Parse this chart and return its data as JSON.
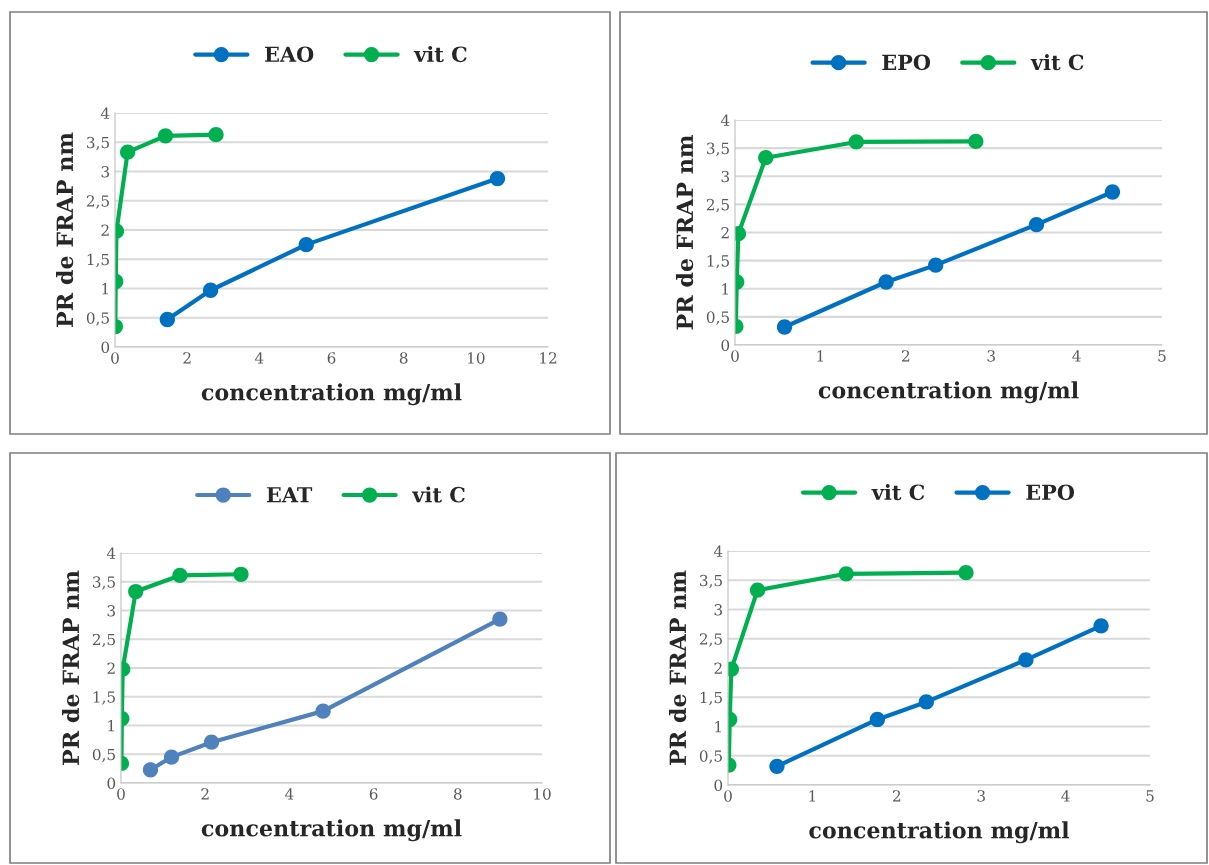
{
  "chart_data": [
    {
      "type": "line",
      "xlabel": "concentration mg/ml",
      "ylabel": "PR de FRAP nm",
      "legend": "top",
      "grid": "y",
      "marker": "circle",
      "line_style": "solid",
      "xlim": [
        0,
        12
      ],
      "xticks": [
        0,
        2,
        4,
        6,
        8,
        10,
        12
      ],
      "ylim": [
        0,
        4
      ],
      "yticks": [
        0,
        {
          "value": 0.5,
          "label": "0,5"
        },
        1,
        {
          "value": 1.5,
          "label": "1,5"
        },
        2,
        {
          "value": 2.5,
          "label": "2,5"
        },
        3,
        {
          "value": 3.5,
          "label": "3,5"
        },
        4
      ],
      "series": [
        {
          "name": "EAO",
          "color": "#0070c0",
          "x": [
            1.45,
            2.65,
            5.3,
            10.6
          ],
          "values": [
            0.47,
            0.97,
            1.75,
            2.88
          ]
        },
        {
          "name": "vit C",
          "color": "#00b050",
          "x": [
            0.01,
            0.02,
            0.04,
            0.35,
            1.4,
            2.8
          ],
          "values": [
            0.35,
            1.12,
            1.98,
            3.33,
            3.61,
            3.63
          ]
        }
      ]
    },
    {
      "type": "line",
      "xlabel": "concentration mg/ml",
      "ylabel": "PR de FRAP nm",
      "legend": "top",
      "grid": "y",
      "marker": "circle",
      "line_style": "solid",
      "xlim": [
        0,
        5
      ],
      "xticks": [
        0,
        1,
        2,
        3,
        4,
        5
      ],
      "ylim": [
        0,
        4
      ],
      "yticks": [
        0,
        {
          "value": 0.5,
          "label": "0,5"
        },
        1,
        {
          "value": 1.5,
          "label": "1,5"
        },
        2,
        {
          "value": 2.5,
          "label": "2,5"
        },
        3,
        {
          "value": 3.5,
          "label": "3,5"
        },
        4
      ],
      "series": [
        {
          "name": "EPO",
          "color": "#0070c0",
          "x": [
            0.58,
            1.77,
            2.35,
            3.53,
            4.42
          ],
          "values": [
            0.32,
            1.12,
            1.42,
            2.14,
            2.72
          ]
        },
        {
          "name": "vit C",
          "color": "#00b050",
          "x": [
            0.01,
            0.02,
            0.04,
            0.36,
            1.42,
            2.82
          ],
          "values": [
            0.33,
            1.12,
            1.98,
            3.33,
            3.61,
            3.62
          ]
        }
      ]
    },
    {
      "type": "line",
      "xlabel": "concentration mg/ml",
      "ylabel": "PR de FRAP nm",
      "legend": "top",
      "grid": "y",
      "marker": "circle",
      "line_style": "solid",
      "xlim": [
        0,
        10
      ],
      "xticks": [
        0,
        2,
        4,
        6,
        8,
        10
      ],
      "ylim": [
        0,
        4
      ],
      "yticks": [
        0,
        {
          "value": 0.5,
          "label": "0,5"
        },
        1,
        {
          "value": 1.5,
          "label": "1,5"
        },
        2,
        {
          "value": 2.5,
          "label": "2,5"
        },
        3,
        {
          "value": 3.5,
          "label": "3,5"
        },
        4
      ],
      "series": [
        {
          "name": "EAT",
          "color": "#4f81bd",
          "x": [
            0.7,
            1.2,
            2.15,
            4.8,
            9.0
          ],
          "values": [
            0.23,
            0.45,
            0.71,
            1.25,
            2.85
          ]
        },
        {
          "name": "vit C",
          "color": "#00b050",
          "x": [
            0.01,
            0.02,
            0.04,
            0.35,
            1.4,
            2.85
          ],
          "values": [
            0.34,
            1.12,
            1.98,
            3.33,
            3.61,
            3.63
          ]
        }
      ]
    },
    {
      "type": "line",
      "xlabel": "concentration mg/ml",
      "ylabel": "PR de FRAP nm",
      "legend": "top",
      "grid": "y",
      "marker": "circle",
      "line_style": "solid",
      "xlim": [
        0,
        5
      ],
      "xticks": [
        0,
        1,
        2,
        3,
        4,
        5
      ],
      "ylim": [
        0,
        4
      ],
      "yticks": [
        0,
        {
          "value": 0.5,
          "label": "0,5"
        },
        1,
        {
          "value": 1.5,
          "label": "1,5"
        },
        2,
        {
          "value": 2.5,
          "label": "2,5"
        },
        3,
        {
          "value": 3.5,
          "label": "3,5"
        },
        4
      ],
      "series": [
        {
          "name": "vit C",
          "color": "#00b050",
          "x": [
            0.01,
            0.02,
            0.04,
            0.35,
            1.4,
            2.82
          ],
          "values": [
            0.34,
            1.12,
            1.98,
            3.33,
            3.61,
            3.63
          ]
        },
        {
          "name": "EPO",
          "color": "#0070c0",
          "x": [
            0.58,
            1.77,
            2.35,
            3.53,
            4.42
          ],
          "values": [
            0.32,
            1.12,
            1.42,
            2.14,
            2.72
          ]
        }
      ]
    }
  ]
}
